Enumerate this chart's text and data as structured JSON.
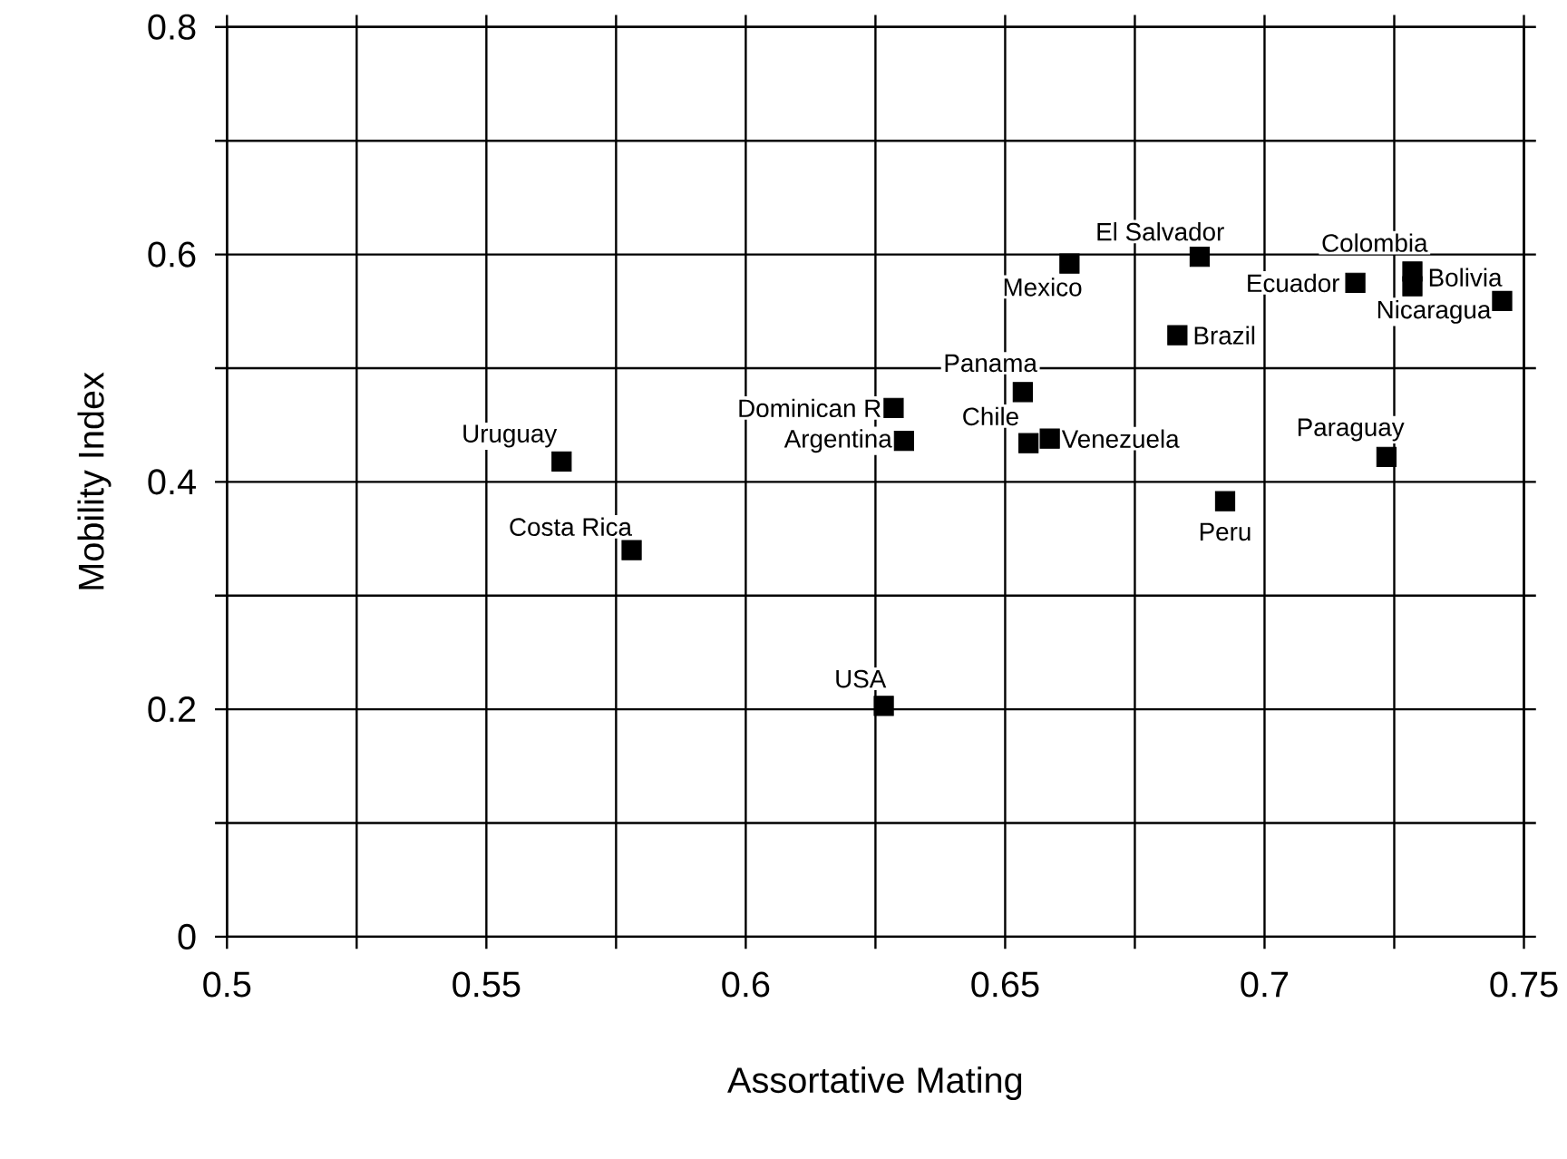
{
  "chart_data": {
    "type": "scatter",
    "xlabel": "Assortative Mating",
    "ylabel": "Mobility Index",
    "x": [
      0.5645,
      0.578,
      0.6266,
      0.6285,
      0.6305,
      0.6534,
      0.6545,
      0.6586,
      0.6624,
      0.6875,
      0.6832,
      0.7175,
      0.7285,
      0.7285,
      0.7458,
      0.7235,
      0.6924
    ],
    "series": [
      {
        "color": "#000000",
        "values": [
          0.418,
          0.34,
          0.203,
          0.465,
          0.436,
          0.479,
          0.434,
          0.438,
          0.592,
          0.598,
          0.529,
          0.575,
          0.585,
          0.572,
          0.559,
          0.422,
          0.383
        ]
      }
    ],
    "annotations": [
      {
        "text": "Uruguay",
        "x": 0.5645,
        "y": 0.418
      },
      {
        "text": "Costa Rica",
        "x": 0.578,
        "y": 0.34
      },
      {
        "text": "USA",
        "x": 0.6266,
        "y": 0.203
      },
      {
        "text": "Dominican R",
        "x": 0.6285,
        "y": 0.465
      },
      {
        "text": "Argentina",
        "x": 0.6305,
        "y": 0.436
      },
      {
        "text": "Panama",
        "x": 0.6534,
        "y": 0.479
      },
      {
        "text": "Chile",
        "x": 0.6545,
        "y": 0.434
      },
      {
        "text": "Venezuela",
        "x": 0.6586,
        "y": 0.438
      },
      {
        "text": "Mexico",
        "x": 0.6624,
        "y": 0.592
      },
      {
        "text": "El Salvador",
        "x": 0.6875,
        "y": 0.598
      },
      {
        "text": "Brazil",
        "x": 0.6832,
        "y": 0.529
      },
      {
        "text": "Ecuador",
        "x": 0.7175,
        "y": 0.575
      },
      {
        "text": "Colombia",
        "x": 0.7285,
        "y": 0.585
      },
      {
        "text": "Bolivia",
        "x": 0.7285,
        "y": 0.572
      },
      {
        "text": "Nicaragua",
        "x": 0.7458,
        "y": 0.559
      },
      {
        "text": "Paraguay",
        "x": 0.7235,
        "y": 0.422
      },
      {
        "text": "Peru",
        "x": 0.6924,
        "y": 0.383
      }
    ],
    "xlim": [
      0.5,
      0.75
    ],
    "xticks": [
      0.5,
      {
        "value": 0.525,
        "label": null
      },
      0.55,
      {
        "value": 0.575,
        "label": null
      },
      0.6,
      {
        "value": 0.625,
        "label": null
      },
      0.65,
      {
        "value": 0.675,
        "label": null
      },
      0.7,
      {
        "value": 0.725,
        "label": null
      },
      0.75
    ],
    "ylim": [
      0,
      0.8
    ],
    "yticks": [
      0,
      {
        "value": 0.1,
        "label": null
      },
      0.2,
      {
        "value": 0.3,
        "label": null
      },
      0.4,
      {
        "value": 0.5,
        "label": null
      },
      0.6,
      {
        "value": 0.7,
        "label": null
      },
      0.8
    ],
    "grid": true,
    "marker": "square"
  }
}
